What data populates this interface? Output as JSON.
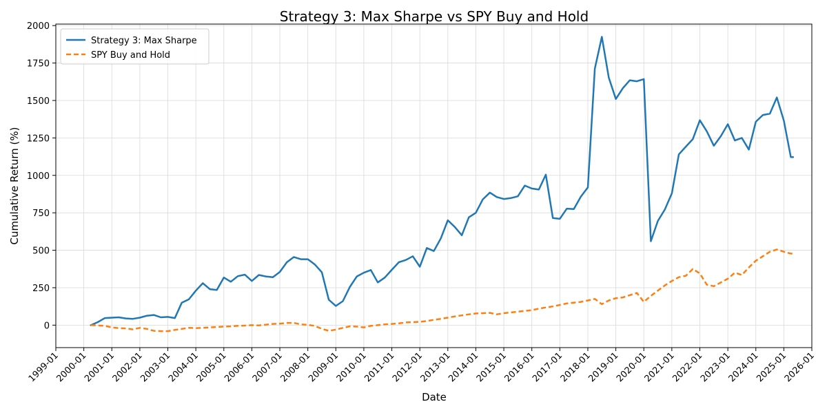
{
  "chart_data": {
    "type": "line",
    "title": "Strategy 3: Max Sharpe vs SPY Buy and Hold",
    "xlabel": "Date",
    "ylabel": "Cumulative Return (%)",
    "xlim": [
      1999.0,
      2026.0
    ],
    "ylim": [
      -150,
      2010
    ],
    "grid": true,
    "legend_position": "top-left",
    "x_ticks": [
      1999,
      2000,
      2001,
      2002,
      2003,
      2004,
      2005,
      2006,
      2007,
      2008,
      2009,
      2010,
      2011,
      2012,
      2013,
      2014,
      2015,
      2016,
      2017,
      2018,
      2019,
      2020,
      2021,
      2022,
      2023,
      2024,
      2025,
      2026
    ],
    "x_tick_labels": [
      "1999-01",
      "2000-01",
      "2001-01",
      "2002-01",
      "2003-01",
      "2004-01",
      "2005-01",
      "2006-01",
      "2007-01",
      "2008-01",
      "2009-01",
      "2010-01",
      "2011-01",
      "2012-01",
      "2013-01",
      "2014-01",
      "2015-01",
      "2016-01",
      "2017-01",
      "2018-01",
      "2019-01",
      "2020-01",
      "2021-01",
      "2022-01",
      "2023-01",
      "2024-01",
      "2025-01",
      "2026-01"
    ],
    "y_ticks": [
      0,
      250,
      500,
      750,
      1000,
      1250,
      1500,
      1750,
      2000
    ],
    "y_tick_labels": [
      "0",
      "250",
      "500",
      "750",
      "1000",
      "1250",
      "1500",
      "1750",
      "2000"
    ],
    "series": [
      {
        "name": "Strategy 3: Max Sharpe",
        "color": "#1f77b4",
        "style": "solid",
        "x": [
          2000.25,
          2000.5,
          2000.75,
          2001.0,
          2001.25,
          2001.5,
          2001.75,
          2002.0,
          2002.25,
          2002.5,
          2002.75,
          2003.0,
          2003.25,
          2003.5,
          2003.75,
          2004.0,
          2004.25,
          2004.5,
          2004.75,
          2005.0,
          2005.25,
          2005.5,
          2005.75,
          2006.0,
          2006.25,
          2006.5,
          2006.75,
          2007.0,
          2007.25,
          2007.5,
          2007.75,
          2008.0,
          2008.25,
          2008.5,
          2008.75,
          2009.0,
          2009.25,
          2009.5,
          2009.75,
          2010.0,
          2010.25,
          2010.5,
          2010.75,
          2011.0,
          2011.25,
          2011.5,
          2011.75,
          2012.0,
          2012.25,
          2012.5,
          2012.75,
          2013.0,
          2013.25,
          2013.5,
          2013.75,
          2014.0,
          2014.25,
          2014.5,
          2014.75,
          2015.0,
          2015.25,
          2015.5,
          2015.75,
          2016.0,
          2016.25,
          2016.5,
          2016.75,
          2017.0,
          2017.25,
          2017.5,
          2017.75,
          2018.0,
          2018.25,
          2018.5,
          2018.75,
          2019.0,
          2019.25,
          2019.5,
          2019.75,
          2020.0,
          2020.25,
          2020.5,
          2020.75,
          2021.0,
          2021.25,
          2021.5,
          2021.75,
          2022.0,
          2022.25,
          2022.5,
          2022.75,
          2023.0,
          2023.25,
          2023.5,
          2023.75,
          2024.0,
          2024.25,
          2024.5,
          2024.75,
          2025.0,
          2025.25,
          2025.33
        ],
        "values": [
          0,
          20,
          47,
          50,
          52,
          45,
          42,
          50,
          63,
          68,
          52,
          55,
          47,
          150,
          172,
          230,
          280,
          240,
          235,
          318,
          290,
          327,
          337,
          295,
          335,
          325,
          320,
          355,
          420,
          455,
          440,
          440,
          405,
          353,
          170,
          128,
          160,
          255,
          325,
          350,
          368,
          285,
          318,
          370,
          420,
          435,
          460,
          390,
          515,
          495,
          580,
          700,
          655,
          600,
          720,
          750,
          840,
          885,
          855,
          842,
          848,
          860,
          932,
          912,
          905,
          1005,
          715,
          710,
          778,
          775,
          858,
          920,
          1712,
          1925,
          1652,
          1510,
          1582,
          1635,
          1628,
          1643,
          560,
          695,
          772,
          880,
          1140,
          1192,
          1242,
          1368,
          1294,
          1198,
          1262,
          1342,
          1233,
          1250,
          1172,
          1358,
          1403,
          1412,
          1520,
          1365,
          1122,
          1122
        ]
      },
      {
        "name": "SPY Buy and Hold",
        "color": "#ff7f0e",
        "style": "dashed",
        "x": [
          2000.25,
          2000.5,
          2000.75,
          2001.0,
          2001.25,
          2001.5,
          2001.75,
          2002.0,
          2002.25,
          2002.5,
          2002.75,
          2003.0,
          2003.25,
          2003.5,
          2003.75,
          2004.0,
          2004.25,
          2004.5,
          2004.75,
          2005.0,
          2005.25,
          2005.5,
          2005.75,
          2006.0,
          2006.25,
          2006.5,
          2006.75,
          2007.0,
          2007.25,
          2007.5,
          2007.75,
          2008.0,
          2008.25,
          2008.5,
          2008.75,
          2009.0,
          2009.25,
          2009.5,
          2009.75,
          2010.0,
          2010.25,
          2010.5,
          2010.75,
          2011.0,
          2011.25,
          2011.5,
          2011.75,
          2012.0,
          2012.25,
          2012.5,
          2012.75,
          2013.0,
          2013.25,
          2013.5,
          2013.75,
          2014.0,
          2014.25,
          2014.5,
          2014.75,
          2015.0,
          2015.25,
          2015.5,
          2015.75,
          2016.0,
          2016.25,
          2016.5,
          2016.75,
          2017.0,
          2017.25,
          2017.5,
          2017.75,
          2018.0,
          2018.25,
          2018.5,
          2018.75,
          2019.0,
          2019.25,
          2019.5,
          2019.75,
          2020.0,
          2020.25,
          2020.5,
          2020.75,
          2021.0,
          2021.25,
          2021.5,
          2021.75,
          2022.0,
          2022.25,
          2022.5,
          2022.75,
          2023.0,
          2023.25,
          2023.5,
          2023.75,
          2024.0,
          2024.25,
          2024.5,
          2024.75,
          2025.0,
          2025.25,
          2025.33
        ],
        "values": [
          0,
          -2,
          -5,
          -15,
          -20,
          -22,
          -28,
          -18,
          -25,
          -38,
          -40,
          -40,
          -32,
          -25,
          -18,
          -20,
          -18,
          -15,
          -12,
          -10,
          -8,
          -5,
          -3,
          0,
          -2,
          3,
          8,
          10,
          15,
          15,
          5,
          2,
          -5,
          -25,
          -38,
          -30,
          -18,
          -8,
          -10,
          -15,
          -5,
          0,
          5,
          8,
          12,
          18,
          20,
          22,
          28,
          35,
          42,
          50,
          58,
          65,
          72,
          78,
          80,
          82,
          72,
          80,
          85,
          90,
          95,
          100,
          110,
          118,
          125,
          135,
          145,
          150,
          155,
          165,
          175,
          140,
          165,
          180,
          185,
          200,
          215,
          155,
          195,
          230,
          265,
          295,
          320,
          330,
          375,
          345,
          270,
          260,
          285,
          310,
          350,
          335,
          385,
          430,
          460,
          490,
          505,
          490,
          478,
          478
        ]
      }
    ]
  }
}
